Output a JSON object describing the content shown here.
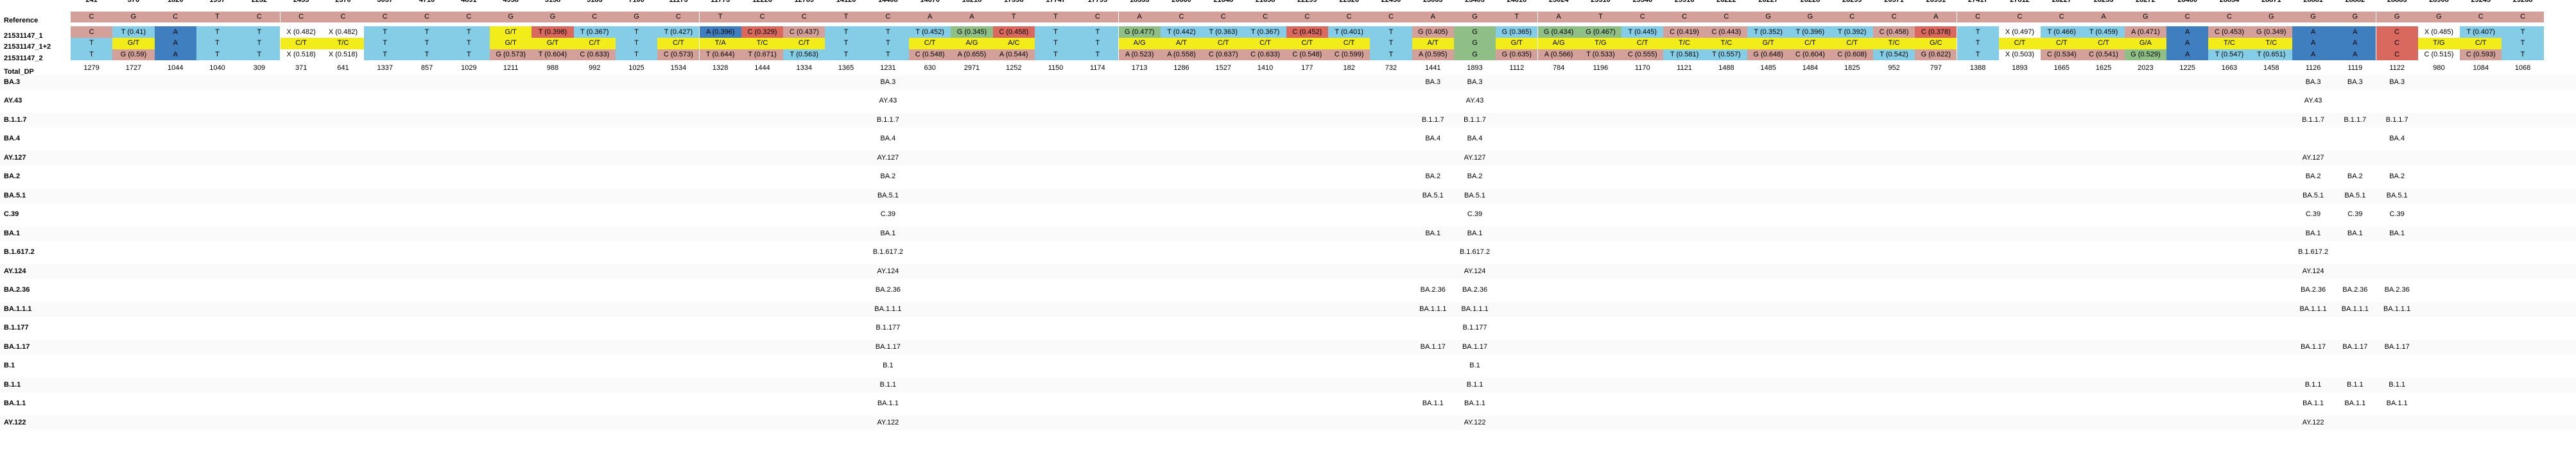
{
  "colors": {
    "A": "#d9695f",
    "C": "#d4a09a",
    "G": "#8fbf86",
    "T": "#85cde6",
    "mixed": "#f2ec1a",
    "dark": "#3f7fbf",
    "none": "#ffffff"
  },
  "headers": {
    "positions_label": "",
    "reference": "Reference",
    "sample1": "21531147_1",
    "sample2": "21531147_1+2",
    "sample3": "21531147_2",
    "total": "Total_DP"
  },
  "positions": [
    "241",
    "376",
    "1820",
    "1957",
    "2232",
    "2455",
    "2570",
    "3037",
    "4710",
    "4891",
    "4958",
    "5158",
    "5183",
    "7100",
    "11173",
    "11773",
    "12226",
    "12789",
    "14120",
    "14408",
    "14670",
    "16218",
    "17398",
    "17747",
    "17795",
    "18333",
    "20860",
    "21648",
    "21658",
    "22299",
    "22326",
    "22450",
    "23063",
    "23403",
    "24616",
    "25024",
    "25510",
    "25546",
    "25916",
    "26222",
    "26227",
    "26228",
    "26299",
    "26571",
    "26951",
    "27417",
    "27812",
    "28227",
    "28253",
    "28272",
    "28460",
    "28854",
    "28871",
    "28881",
    "28882",
    "28883",
    "28908",
    "29245",
    "29268"
  ],
  "reference": [
    "C",
    "G",
    "C",
    "T",
    "C",
    "C",
    "C",
    "C",
    "C",
    "C",
    "G",
    "G",
    "C",
    "G",
    "C",
    "T",
    "C",
    "C",
    "T",
    "C",
    "A",
    "A",
    "T",
    "T",
    "C",
    "A",
    "C",
    "C",
    "C",
    "C",
    "C",
    "C",
    "A",
    "G",
    "T",
    "A",
    "T",
    "C",
    "C",
    "C",
    "G",
    "G",
    "C",
    "C",
    "A",
    "C",
    "C",
    "C",
    "A",
    "G",
    "C",
    "C",
    "G",
    "G",
    "G",
    "G",
    "G",
    "C",
    "C"
  ],
  "sample1": [
    {
      "t": "C",
      "c": "C"
    },
    {
      "t": "T (0.41)",
      "c": "T"
    },
    {
      "t": "A",
      "c": "dark"
    },
    {
      "t": "T",
      "c": "T"
    },
    {
      "t": "T",
      "c": "T"
    },
    {
      "t": "X (0.482)",
      "c": "none"
    },
    {
      "t": "X (0.482)",
      "c": "none"
    },
    {
      "t": "T",
      "c": "T"
    },
    {
      "t": "T",
      "c": "T"
    },
    {
      "t": "T",
      "c": "T"
    },
    {
      "t": "G/T",
      "c": "mixed"
    },
    {
      "t": "T (0.398)",
      "c": "A"
    },
    {
      "t": "T (0.367)",
      "c": "T"
    },
    {
      "t": "T",
      "c": "T"
    },
    {
      "t": "T (0.427)",
      "c": "T"
    },
    {
      "t": "A (0.396)",
      "c": "dark"
    },
    {
      "t": "C (0.329)",
      "c": "A"
    },
    {
      "t": "C (0.437)",
      "c": "C"
    },
    {
      "t": "T",
      "c": "T"
    },
    {
      "t": "T",
      "c": "T"
    },
    {
      "t": "T (0.452)",
      "c": "T"
    },
    {
      "t": "G (0.345)",
      "c": "G"
    },
    {
      "t": "C (0.458)",
      "c": "A"
    },
    {
      "t": "T",
      "c": "T"
    },
    {
      "t": "T",
      "c": "T"
    },
    {
      "t": "G (0.477)",
      "c": "G"
    },
    {
      "t": "T (0.442)",
      "c": "T"
    },
    {
      "t": "T (0.363)",
      "c": "T"
    },
    {
      "t": "T (0.367)",
      "c": "T"
    },
    {
      "t": "C (0.452)",
      "c": "A"
    },
    {
      "t": "T (0.401)",
      "c": "T"
    },
    {
      "t": "T",
      "c": "T"
    },
    {
      "t": "G (0.405)",
      "c": "C"
    },
    {
      "t": "G",
      "c": "G"
    },
    {
      "t": "G (0.365)",
      "c": "T"
    },
    {
      "t": "G (0.434)",
      "c": "G"
    },
    {
      "t": "G (0.467)",
      "c": "G"
    },
    {
      "t": "T (0.445)",
      "c": "T"
    },
    {
      "t": "C (0.419)",
      "c": "C"
    },
    {
      "t": "C (0.443)",
      "c": "C"
    },
    {
      "t": "T (0.352)",
      "c": "T"
    },
    {
      "t": "T (0.396)",
      "c": "T"
    },
    {
      "t": "T (0.392)",
      "c": "T"
    },
    {
      "t": "C (0.458)",
      "c": "C"
    },
    {
      "t": "C (0.378)",
      "c": "A"
    },
    {
      "t": "T",
      "c": "T"
    },
    {
      "t": "X (0.497)",
      "c": "none"
    },
    {
      "t": "T (0.466)",
      "c": "T"
    },
    {
      "t": "T (0.459)",
      "c": "T"
    },
    {
      "t": "A (0.471)",
      "c": "C"
    },
    {
      "t": "A",
      "c": "dark"
    },
    {
      "t": "C (0.453)",
      "c": "C"
    },
    {
      "t": "G (0.349)",
      "c": "C"
    },
    {
      "t": "A",
      "c": "dark"
    },
    {
      "t": "A",
      "c": "dark"
    },
    {
      "t": "C",
      "c": "A"
    },
    {
      "t": "X (0.485)",
      "c": "none"
    },
    {
      "t": "T (0.407)",
      "c": "T"
    },
    {
      "t": "T",
      "c": "T"
    }
  ],
  "sample2": [
    {
      "t": "T",
      "c": "T"
    },
    {
      "t": "G/T",
      "c": "mixed"
    },
    {
      "t": "A",
      "c": "dark"
    },
    {
      "t": "T",
      "c": "T"
    },
    {
      "t": "T",
      "c": "T"
    },
    {
      "t": "C/T",
      "c": "mixed"
    },
    {
      "t": "T/C",
      "c": "mixed"
    },
    {
      "t": "T",
      "c": "T"
    },
    {
      "t": "T",
      "c": "T"
    },
    {
      "t": "T",
      "c": "T"
    },
    {
      "t": "G/T",
      "c": "mixed"
    },
    {
      "t": "G/T",
      "c": "mixed"
    },
    {
      "t": "C/T",
      "c": "mixed"
    },
    {
      "t": "T",
      "c": "T"
    },
    {
      "t": "C/T",
      "c": "mixed"
    },
    {
      "t": "T/A",
      "c": "mixed"
    },
    {
      "t": "T/C",
      "c": "mixed"
    },
    {
      "t": "C/T",
      "c": "mixed"
    },
    {
      "t": "T",
      "c": "T"
    },
    {
      "t": "T",
      "c": "T"
    },
    {
      "t": "C/T",
      "c": "mixed"
    },
    {
      "t": "A/G",
      "c": "mixed"
    },
    {
      "t": "A/C",
      "c": "mixed"
    },
    {
      "t": "T",
      "c": "T"
    },
    {
      "t": "T",
      "c": "T"
    },
    {
      "t": "A/G",
      "c": "mixed"
    },
    {
      "t": "A/T",
      "c": "mixed"
    },
    {
      "t": "C/T",
      "c": "mixed"
    },
    {
      "t": "C/T",
      "c": "mixed"
    },
    {
      "t": "C/T",
      "c": "mixed"
    },
    {
      "t": "C/T",
      "c": "mixed"
    },
    {
      "t": "T",
      "c": "T"
    },
    {
      "t": "A/T",
      "c": "mixed"
    },
    {
      "t": "G",
      "c": "G"
    },
    {
      "t": "G/T",
      "c": "mixed"
    },
    {
      "t": "A/G",
      "c": "mixed"
    },
    {
      "t": "T/G",
      "c": "mixed"
    },
    {
      "t": "C/T",
      "c": "mixed"
    },
    {
      "t": "T/C",
      "c": "mixed"
    },
    {
      "t": "T/C",
      "c": "mixed"
    },
    {
      "t": "G/T",
      "c": "mixed"
    },
    {
      "t": "C/T",
      "c": "mixed"
    },
    {
      "t": "C/T",
      "c": "mixed"
    },
    {
      "t": "T/C",
      "c": "mixed"
    },
    {
      "t": "G/C",
      "c": "mixed"
    },
    {
      "t": "T",
      "c": "T"
    },
    {
      "t": "C/T",
      "c": "mixed"
    },
    {
      "t": "C/T",
      "c": "mixed"
    },
    {
      "t": "C/T",
      "c": "mixed"
    },
    {
      "t": "G/A",
      "c": "mixed"
    },
    {
      "t": "A",
      "c": "dark"
    },
    {
      "t": "T/C",
      "c": "mixed"
    },
    {
      "t": "T/C",
      "c": "mixed"
    },
    {
      "t": "A",
      "c": "dark"
    },
    {
      "t": "A",
      "c": "dark"
    },
    {
      "t": "C",
      "c": "A"
    },
    {
      "t": "T/G",
      "c": "mixed"
    },
    {
      "t": "C/T",
      "c": "mixed"
    },
    {
      "t": "T",
      "c": "T"
    }
  ],
  "sample3": [
    {
      "t": "T",
      "c": "T"
    },
    {
      "t": "G (0.59)",
      "c": "C"
    },
    {
      "t": "A",
      "c": "dark"
    },
    {
      "t": "T",
      "c": "T"
    },
    {
      "t": "T",
      "c": "T"
    },
    {
      "t": "X (0.518)",
      "c": "none"
    },
    {
      "t": "X (0.518)",
      "c": "none"
    },
    {
      "t": "T",
      "c": "T"
    },
    {
      "t": "T",
      "c": "T"
    },
    {
      "t": "T",
      "c": "T"
    },
    {
      "t": "G (0.573)",
      "c": "C"
    },
    {
      "t": "T (0.604)",
      "c": "C"
    },
    {
      "t": "C (0.633)",
      "c": "C"
    },
    {
      "t": "T",
      "c": "T"
    },
    {
      "t": "C (0.573)",
      "c": "C"
    },
    {
      "t": "T (0.644)",
      "c": "C"
    },
    {
      "t": "T (0.671)",
      "c": "C"
    },
    {
      "t": "T (0.563)",
      "c": "T"
    },
    {
      "t": "T",
      "c": "T"
    },
    {
      "t": "T",
      "c": "T"
    },
    {
      "t": "C (0.548)",
      "c": "C"
    },
    {
      "t": "A (0.655)",
      "c": "C"
    },
    {
      "t": "A (0.544)",
      "c": "C"
    },
    {
      "t": "T",
      "c": "T"
    },
    {
      "t": "T",
      "c": "T"
    },
    {
      "t": "A (0.523)",
      "c": "C"
    },
    {
      "t": "A (0.558)",
      "c": "C"
    },
    {
      "t": "C (0.637)",
      "c": "C"
    },
    {
      "t": "C (0.633)",
      "c": "C"
    },
    {
      "t": "C (0.548)",
      "c": "C"
    },
    {
      "t": "C (0.599)",
      "c": "C"
    },
    {
      "t": "T",
      "c": "T"
    },
    {
      "t": "A (0.595)",
      "c": "C"
    },
    {
      "t": "G",
      "c": "G"
    },
    {
      "t": "G (0.635)",
      "c": "C"
    },
    {
      "t": "A (0.566)",
      "c": "C"
    },
    {
      "t": "T (0.533)",
      "c": "C"
    },
    {
      "t": "C (0.555)",
      "c": "C"
    },
    {
      "t": "T (0.581)",
      "c": "T"
    },
    {
      "t": "T (0.557)",
      "c": "T"
    },
    {
      "t": "G (0.648)",
      "c": "C"
    },
    {
      "t": "C (0.604)",
      "c": "C"
    },
    {
      "t": "C (0.608)",
      "c": "C"
    },
    {
      "t": "T (0.542)",
      "c": "T"
    },
    {
      "t": "G (0.622)",
      "c": "C"
    },
    {
      "t": "T",
      "c": "T"
    },
    {
      "t": "X (0.503)",
      "c": "none"
    },
    {
      "t": "C (0.534)",
      "c": "C"
    },
    {
      "t": "C (0.541)",
      "c": "C"
    },
    {
      "t": "G (0.529)",
      "c": "G"
    },
    {
      "t": "A",
      "c": "dark"
    },
    {
      "t": "T (0.547)",
      "c": "T"
    },
    {
      "t": "T (0.651)",
      "c": "T"
    },
    {
      "t": "A",
      "c": "dark"
    },
    {
      "t": "A",
      "c": "dark"
    },
    {
      "t": "C",
      "c": "A"
    },
    {
      "t": "C (0.515)",
      "c": "none"
    },
    {
      "t": "C (0.593)",
      "c": "C"
    },
    {
      "t": "T",
      "c": "T"
    }
  ],
  "total_dp": [
    "1279",
    "1727",
    "1044",
    "1040",
    "309",
    "371",
    "641",
    "1337",
    "857",
    "1029",
    "1211",
    "988",
    "992",
    "1025",
    "1534",
    "1328",
    "1444",
    "1334",
    "1365",
    "1231",
    "630",
    "2971",
    "1252",
    "1150",
    "1174",
    "1713",
    "1286",
    "1527",
    "1410",
    "177",
    "182",
    "732",
    "1441",
    "1893",
    "1112",
    "784",
    "1196",
    "1170",
    "1121",
    "1488",
    "1485",
    "1484",
    "1825",
    "952",
    "797",
    "1388",
    "1893",
    "1665",
    "1625",
    "2023",
    "1225",
    "1663",
    "1458",
    "1126",
    "1119",
    "1122",
    "980",
    "1084",
    "1068"
  ],
  "lineages": [
    {
      "name": "BA.3",
      "cells": [
        {
          "col": 19,
          "t": "BA.3"
        },
        {
          "col": 32,
          "t": "BA.3"
        },
        {
          "col": 33,
          "t": "BA.3"
        },
        {
          "col": 53,
          "t": "BA.3"
        },
        {
          "col": 54,
          "t": "BA.3"
        },
        {
          "col": 55,
          "t": "BA.3"
        }
      ]
    },
    {
      "name": "AY.43",
      "cells": [
        {
          "col": 19,
          "t": "AY.43"
        },
        {
          "col": 33,
          "t": "AY.43"
        },
        {
          "col": 53,
          "t": "AY.43"
        }
      ]
    },
    {
      "name": "B.1.1.7",
      "cells": [
        {
          "col": 19,
          "t": "B.1.1.7"
        },
        {
          "col": 32,
          "t": "B.1.1.7"
        },
        {
          "col": 33,
          "t": "B.1.1.7"
        },
        {
          "col": 53,
          "t": "B.1.1.7"
        },
        {
          "col": 54,
          "t": "B.1.1.7"
        },
        {
          "col": 55,
          "t": "B.1.1.7"
        }
      ]
    },
    {
      "name": "BA.4",
      "cells": [
        {
          "col": 19,
          "t": "BA.4"
        },
        {
          "col": 32,
          "t": "BA.4"
        },
        {
          "col": 33,
          "t": "BA.4"
        },
        {
          "col": 55,
          "t": "BA.4"
        }
      ]
    },
    {
      "name": "AY.127",
      "cells": [
        {
          "col": 19,
          "t": "AY.127"
        },
        {
          "col": 33,
          "t": "AY.127"
        },
        {
          "col": 53,
          "t": "AY.127"
        }
      ]
    },
    {
      "name": "BA.2",
      "cells": [
        {
          "col": 19,
          "t": "BA.2"
        },
        {
          "col": 32,
          "t": "BA.2"
        },
        {
          "col": 33,
          "t": "BA.2"
        },
        {
          "col": 53,
          "t": "BA.2"
        },
        {
          "col": 54,
          "t": "BA.2"
        },
        {
          "col": 55,
          "t": "BA.2"
        }
      ]
    },
    {
      "name": "BA.5.1",
      "cells": [
        {
          "col": 19,
          "t": "BA.5.1"
        },
        {
          "col": 32,
          "t": "BA.5.1"
        },
        {
          "col": 33,
          "t": "BA.5.1"
        },
        {
          "col": 53,
          "t": "BA.5.1"
        },
        {
          "col": 54,
          "t": "BA.5.1"
        },
        {
          "col": 55,
          "t": "BA.5.1"
        }
      ]
    },
    {
      "name": "C.39",
      "cells": [
        {
          "col": 19,
          "t": "C.39"
        },
        {
          "col": 33,
          "t": "C.39"
        },
        {
          "col": 53,
          "t": "C.39"
        },
        {
          "col": 54,
          "t": "C.39"
        },
        {
          "col": 55,
          "t": "C.39"
        }
      ]
    },
    {
      "name": "BA.1",
      "cells": [
        {
          "col": 19,
          "t": "BA.1"
        },
        {
          "col": 32,
          "t": "BA.1"
        },
        {
          "col": 33,
          "t": "BA.1"
        },
        {
          "col": 53,
          "t": "BA.1"
        },
        {
          "col": 54,
          "t": "BA.1"
        },
        {
          "col": 55,
          "t": "BA.1"
        }
      ]
    },
    {
      "name": "B.1.617.2",
      "cells": [
        {
          "col": 19,
          "t": "B.1.617.2"
        },
        {
          "col": 33,
          "t": "B.1.617.2"
        },
        {
          "col": 53,
          "t": "B.1.617.2"
        }
      ]
    },
    {
      "name": "AY.124",
      "cells": [
        {
          "col": 19,
          "t": "AY.124"
        },
        {
          "col": 33,
          "t": "AY.124"
        },
        {
          "col": 53,
          "t": "AY.124"
        }
      ]
    },
    {
      "name": "BA.2.36",
      "cells": [
        {
          "col": 19,
          "t": "BA.2.36"
        },
        {
          "col": 32,
          "t": "BA.2.36"
        },
        {
          "col": 33,
          "t": "BA.2.36"
        },
        {
          "col": 53,
          "t": "BA.2.36"
        },
        {
          "col": 54,
          "t": "BA.2.36"
        },
        {
          "col": 55,
          "t": "BA.2.36"
        }
      ]
    },
    {
      "name": "BA.1.1.1",
      "cells": [
        {
          "col": 19,
          "t": "BA.1.1.1"
        },
        {
          "col": 32,
          "t": "BA.1.1.1"
        },
        {
          "col": 33,
          "t": "BA.1.1.1"
        },
        {
          "col": 53,
          "t": "BA.1.1.1"
        },
        {
          "col": 54,
          "t": "BA.1.1.1"
        },
        {
          "col": 55,
          "t": "BA.1.1.1"
        }
      ]
    },
    {
      "name": "B.1.177",
      "cells": [
        {
          "col": 19,
          "t": "B.1.177"
        },
        {
          "col": 33,
          "t": "B.1.177"
        }
      ]
    },
    {
      "name": "BA.1.17",
      "cells": [
        {
          "col": 19,
          "t": "BA.1.17"
        },
        {
          "col": 32,
          "t": "BA.1.17"
        },
        {
          "col": 33,
          "t": "BA.1.17"
        },
        {
          "col": 53,
          "t": "BA.1.17"
        },
        {
          "col": 54,
          "t": "BA.1.17"
        },
        {
          "col": 55,
          "t": "BA.1.17"
        }
      ]
    },
    {
      "name": "B.1",
      "cells": [
        {
          "col": 19,
          "t": "B.1"
        },
        {
          "col": 33,
          "t": "B.1"
        }
      ]
    },
    {
      "name": "B.1.1",
      "cells": [
        {
          "col": 19,
          "t": "B.1.1"
        },
        {
          "col": 33,
          "t": "B.1.1"
        },
        {
          "col": 53,
          "t": "B.1.1"
        },
        {
          "col": 54,
          "t": "B.1.1"
        },
        {
          "col": 55,
          "t": "B.1.1"
        }
      ]
    },
    {
      "name": "BA.1.1",
      "cells": [
        {
          "col": 19,
          "t": "BA.1.1"
        },
        {
          "col": 32,
          "t": "BA.1.1"
        },
        {
          "col": 33,
          "t": "BA.1.1"
        },
        {
          "col": 53,
          "t": "BA.1.1"
        },
        {
          "col": 54,
          "t": "BA.1.1"
        },
        {
          "col": 55,
          "t": "BA.1.1"
        }
      ]
    },
    {
      "name": "AY.122",
      "cells": [
        {
          "col": 19,
          "t": "AY.122"
        },
        {
          "col": 33,
          "t": "AY.122"
        },
        {
          "col": 53,
          "t": "AY.122"
        }
      ]
    }
  ]
}
